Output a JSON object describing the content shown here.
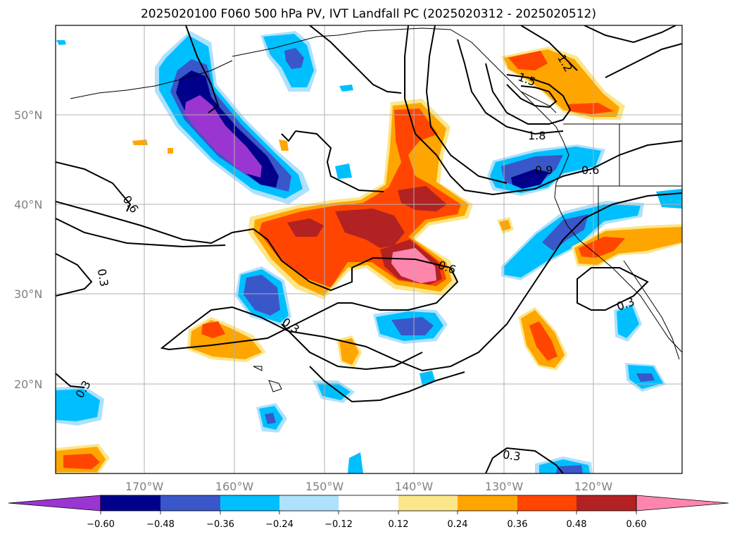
{
  "title": "2025020100 F060 500 hPa PV, IVT Landfall PC (2025020312 - 2025020512)",
  "map": {
    "lat_labels": [
      "50°N",
      "40°N",
      "30°N",
      "20°N"
    ],
    "lon_labels": [
      "170°W",
      "160°W",
      "150°W",
      "140°W",
      "130°W",
      "120°W"
    ],
    "contour_labels": [
      "1.2",
      "1.5",
      "1.8",
      "0.9",
      "0.6",
      "0.6",
      "0.3",
      "0.6",
      "0.3",
      "0.3",
      "0.3",
      "0.3"
    ]
  },
  "colorbar": {
    "ticks": [
      "−0.60",
      "−0.48",
      "−0.36",
      "−0.24",
      "−0.12",
      "0.12",
      "0.24",
      "0.36",
      "0.48",
      "0.60"
    ],
    "colors": [
      "#9a35d2",
      "#00008b",
      "#3a57c9",
      "#00bfff",
      "#aee1fb",
      "#ffffff",
      "#fbe68a",
      "#ffa500",
      "#ff4500",
      "#b22222",
      "#ff85ad"
    ]
  },
  "colors": {
    "neg_060": "#9a35d2",
    "neg_048": "#00008b",
    "neg_036": "#3a57c9",
    "neg_024": "#00bfff",
    "neg_012": "#aee1fb",
    "pos_012": "#fbe68a",
    "pos_024": "#ffa500",
    "pos_036": "#ff4500",
    "pos_048": "#b22222",
    "pos_060": "#ff85ad"
  }
}
